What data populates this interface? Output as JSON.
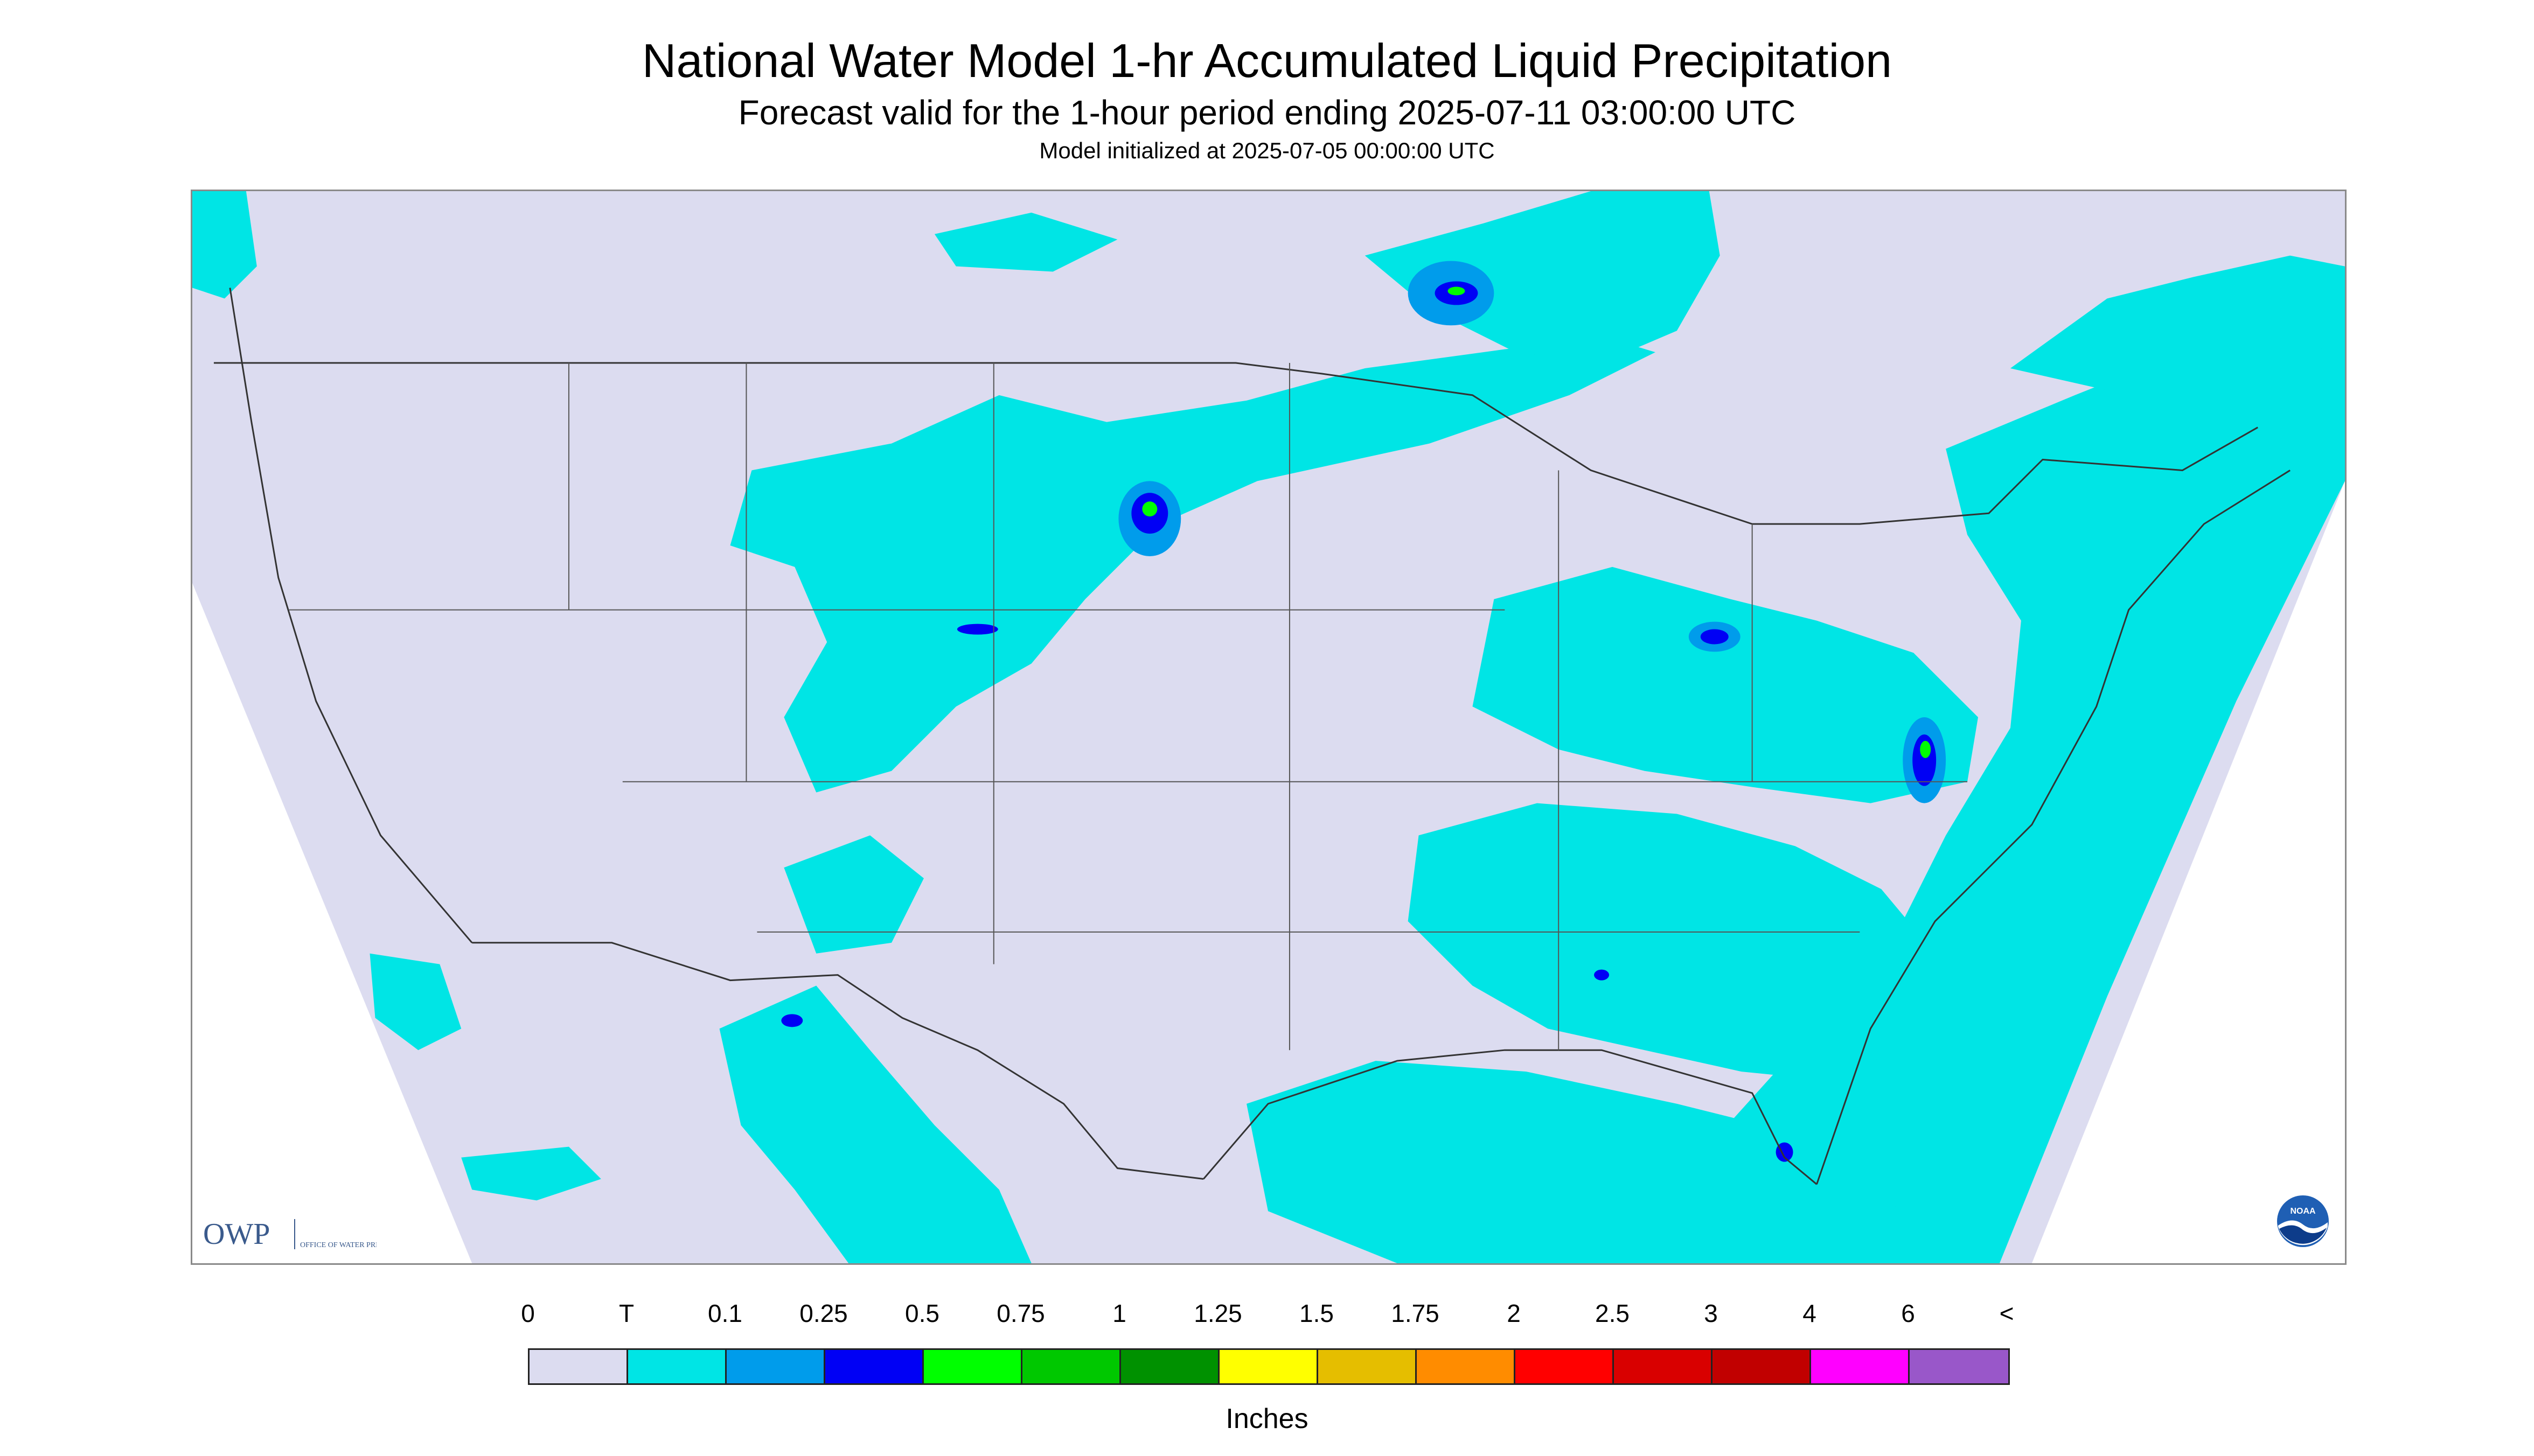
{
  "header": {
    "title": "National Water Model 1-hr Accumulated Liquid Precipitation",
    "subtitle": "Forecast valid for the 1-hour period ending 2025-07-11 03:00:00 UTC",
    "init_line": "Model initialized at 2025-07-05 00:00:00 UTC"
  },
  "logos": {
    "owp_text": "OWP",
    "owp_sub": "OFFICE OF WATER PREDICTION",
    "noaa_text": "NOAA"
  },
  "colors": {
    "background_none": "#dcdcf0",
    "trace": "#00e5e5",
    "outside_domain": "#ffffff",
    "boundary": "#333333"
  },
  "legend": {
    "labels": [
      "0",
      "T",
      "0.1",
      "0.25",
      "0.5",
      "0.75",
      "1",
      "1.25",
      "1.5",
      "1.75",
      "2",
      "2.5",
      "3",
      "4",
      "6",
      "<"
    ],
    "colors": [
      "#dcdcf0",
      "#00e5e5",
      "#009ceb",
      "#0000f5",
      "#00ff00",
      "#00c800",
      "#009100",
      "#ffff00",
      "#e5be00",
      "#ff8c00",
      "#ff0000",
      "#d90000",
      "#c10000",
      "#ff00ff",
      "#9957c9"
    ],
    "units": "Inches"
  }
}
